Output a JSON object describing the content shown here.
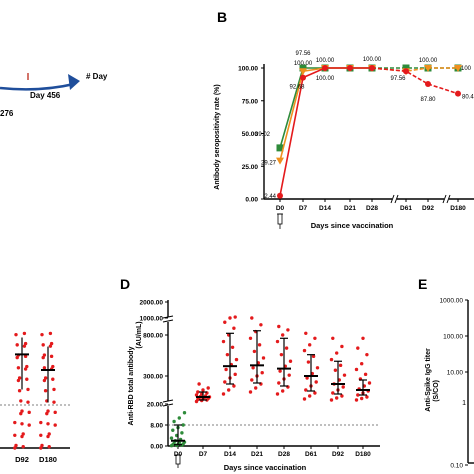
{
  "panel_a": {
    "day_label": "Day 456",
    "day_axis_label": "# Day",
    "value_label": "276"
  },
  "panel_b": {
    "letter": "B",
    "ylabel": "Antibody seropositivity rate (%)",
    "xlabel": "Days since vaccination"
  },
  "panel_c": {
    "tick_labels": [
      "D92",
      "D180"
    ]
  },
  "panel_d": {
    "letter": "D",
    "ylabel": "Anti-RBD total antibody",
    "yunit": "(AU/mL)",
    "xlabel": "Days since vaccination"
  },
  "panel_e": {
    "letter": "E",
    "ylabel": "Anti-Spike IgG titer",
    "yunit": "(S/CO)",
    "ytick_labels": [
      "1000.00",
      "100.00",
      "10.00",
      "0.10"
    ],
    "ytick_partial": "1"
  },
  "colors": {
    "green": "#2e8b3a",
    "orange": "#f0901e",
    "red": "#e41a1c",
    "arrow_blue": "#1f4e9b",
    "axis": "#000000"
  },
  "chart_data": [
    {
      "type": "line",
      "panel": "B",
      "categories": [
        "D0",
        "D7",
        "D14",
        "D21",
        "D28",
        "D61",
        "D92",
        "D180"
      ],
      "ylim": [
        0,
        100
      ],
      "yticks": [
        "0.00",
        "25.00",
        "50.00",
        "75.00",
        "100.00"
      ],
      "series": [
        {
          "color": "green",
          "values": [
            39.02,
            100.0,
            100,
            100,
            100,
            100,
            100,
            100
          ]
        },
        {
          "color": "orange",
          "values": [
            29.27,
            97.56,
            100.0,
            100,
            100,
            97.56,
            100.0,
            100
          ]
        },
        {
          "color": "red",
          "values": [
            2.44,
            92.68,
            100.0,
            100,
            100.0,
            97.56,
            87.8,
            80.4
          ]
        }
      ],
      "data_labels": [
        {
          "text": "100.00",
          "series": 0,
          "index": 1
        },
        {
          "text": "39.02",
          "series": 0,
          "index": 0
        },
        {
          "text": "97.56",
          "series": 1,
          "index": 1
        },
        {
          "text": "100.00",
          "series": 1,
          "index": 2
        },
        {
          "text": "29.27",
          "series": 1,
          "index": 0
        },
        {
          "text": "92.68",
          "series": 2,
          "index": 1
        },
        {
          "text": "100.00",
          "series": 2,
          "index": 2
        },
        {
          "text": "100.00",
          "series": 2,
          "index": 4
        },
        {
          "text": "2.44",
          "series": 2,
          "index": 0
        },
        {
          "text": "97.56",
          "series": 2,
          "index": 5
        },
        {
          "text": "87.80",
          "series": 2,
          "index": 6
        },
        {
          "text": "100.00",
          "series": 1,
          "index": 6
        },
        {
          "text": "100",
          "series": 0,
          "index": 7
        },
        {
          "text": "80.4",
          "series": 2,
          "index": 7
        }
      ]
    },
    {
      "type": "scatter",
      "panel": "D",
      "categories": [
        "D0",
        "D7",
        "D14",
        "D21",
        "D28",
        "D61",
        "D92",
        "D180"
      ],
      "yticks": [
        "2000.00",
        "1000.00",
        "800.00",
        "300.00",
        "20.00",
        "8.00",
        "0.00"
      ],
      "dashed_line_at": 8.0,
      "medians": [
        2,
        90,
        420,
        430,
        390,
        300,
        220,
        160
      ],
      "iqr_low": [
        0.5,
        60,
        220,
        230,
        200,
        150,
        120,
        110
      ],
      "iqr_high": [
        8,
        140,
        820,
        850,
        760,
        560,
        480,
        260
      ],
      "points": [
        [
          0.1,
          0.2,
          0.3,
          0.5,
          0.6,
          0.8,
          1,
          1.2,
          1.5,
          2,
          2.5,
          3,
          4,
          5,
          6,
          7,
          8,
          10,
          12,
          15
        ],
        [
          45,
          55,
          60,
          65,
          70,
          75,
          80,
          85,
          90,
          95,
          100,
          110,
          120,
          130,
          140,
          160,
          180,
          220
        ],
        [
          120,
          160,
          200,
          240,
          280,
          320,
          380,
          440,
          500,
          560,
          650,
          720,
          800,
          880,
          950,
          1000,
          1060
        ],
        [
          140,
          180,
          220,
          260,
          300,
          340,
          400,
          460,
          520,
          600,
          680,
          760,
          840,
          920,
          1000
        ],
        [
          120,
          150,
          190,
          230,
          270,
          310,
          360,
          420,
          480,
          560,
          640,
          720,
          800,
          860,
          900
        ],
        [
          70,
          100,
          130,
          160,
          200,
          240,
          280,
          330,
          400,
          470,
          540,
          610,
          680,
          760,
          820
        ],
        [
          60,
          80,
          100,
          130,
          160,
          190,
          220,
          260,
          310,
          370,
          430,
          500,
          580,
          660,
          760
        ],
        [
          60,
          75,
          90,
          110,
          130,
          150,
          170,
          200,
          230,
          270,
          320,
          380,
          450,
          560,
          640,
          760
        ]
      ]
    },
    {
      "type": "scatter",
      "panel": "C",
      "categories": [
        "D92",
        "D180"
      ],
      "medians": [
        0.72,
        0.6
      ],
      "iqr_low": [
        0.45,
        0.35
      ],
      "iqr_high": [
        0.85,
        0.78
      ],
      "dashed_line_at": 0.2
    }
  ]
}
